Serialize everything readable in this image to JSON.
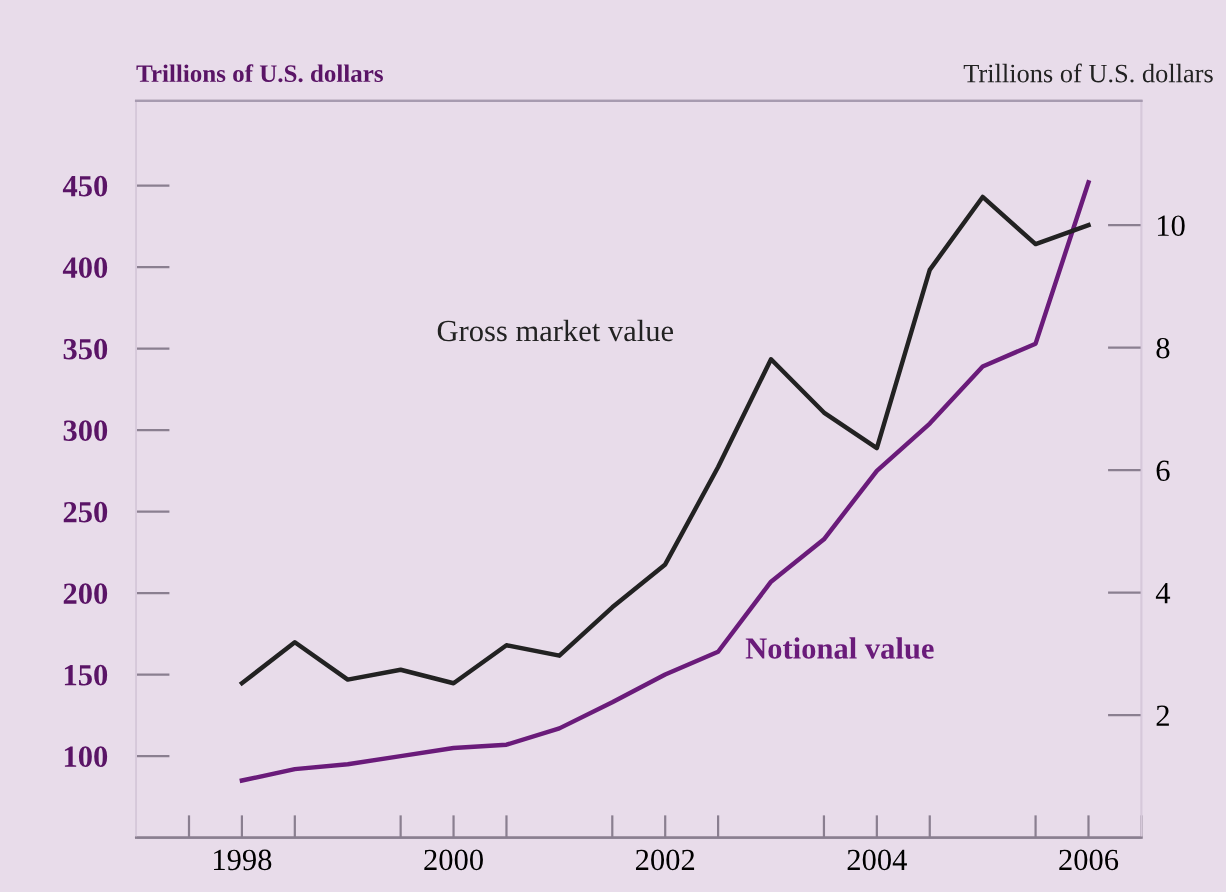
{
  "chart_data": {
    "type": "line",
    "ylabel": "Trillions of U.S. dollars",
    "y2label": "Trillions of U.S. dollars",
    "x": [
      1998.5,
      1999.0,
      1999.5,
      2000.0,
      2000.5,
      2001.0,
      2001.5,
      2002.0,
      2002.5,
      2003.0,
      2003.5,
      2004.0,
      2004.5,
      2005.0,
      2005.5,
      2006.0,
      2006.5
    ],
    "series": [
      {
        "name": "Gross market value",
        "color": "#222222",
        "axis": "y2",
        "values": [
          2.52,
          3.19,
          2.58,
          2.74,
          2.52,
          3.14,
          2.97,
          3.76,
          4.46,
          6.05,
          7.81,
          6.94,
          6.36,
          9.27,
          10.46,
          9.69,
          10.0
        ]
      },
      {
        "name": "Notional value",
        "color": "#6a1b7a",
        "values": [
          85,
          92,
          95,
          100,
          105,
          107,
          117,
          133,
          150,
          164,
          207,
          233,
          275,
          304,
          339,
          353,
          452
        ]
      }
    ],
    "xlim": [
      1997.5,
      2007.0
    ],
    "xticks": [
      {
        "value": 1998.0,
        "label": null
      },
      {
        "value": 1998.5,
        "label": "1998"
      },
      {
        "value": 1999.0,
        "label": null
      },
      {
        "value": 2000.0,
        "label": null
      },
      {
        "value": 2000.5,
        "label": "2000"
      },
      {
        "value": 2001.0,
        "label": null
      },
      {
        "value": 2002.0,
        "label": null
      },
      {
        "value": 2002.5,
        "label": "2002"
      },
      {
        "value": 2003.0,
        "label": null
      },
      {
        "value": 2004.0,
        "label": null
      },
      {
        "value": 2004.5,
        "label": "2004"
      },
      {
        "value": 2005.0,
        "label": null
      },
      {
        "value": 2006.0,
        "label": null
      },
      {
        "value": 2006.5,
        "label": "2006"
      },
      {
        "value": 2007.0,
        "label": null
      }
    ],
    "ylim": [
      50,
      502
    ],
    "yticks": [
      100,
      150,
      200,
      250,
      300,
      350,
      400,
      450
    ],
    "y2lim": [
      0,
      12.03
    ],
    "y2ticks": [
      2,
      4,
      6,
      8,
      10
    ],
    "grid": false,
    "legend": false,
    "marker": "none",
    "line_style": "solid"
  }
}
